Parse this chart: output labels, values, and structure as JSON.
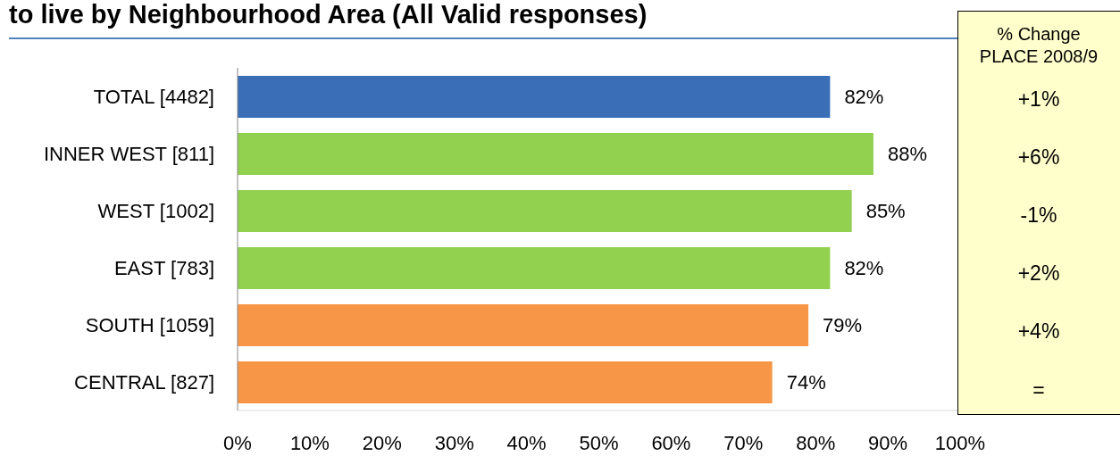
{
  "chart_data": {
    "type": "bar",
    "orientation": "horizontal",
    "title": "to live by Neighbourhood Area (All Valid responses)",
    "categories": [
      "TOTAL [4482]",
      "INNER WEST [811]",
      "WEST [1002]",
      "EAST [783]",
      "SOUTH [1059]",
      "CENTRAL [827]"
    ],
    "values": [
      82,
      88,
      85,
      82,
      79,
      74
    ],
    "colors": [
      "#3a6fb8",
      "#92d050",
      "#92d050",
      "#92d050",
      "#f79646",
      "#f79646"
    ],
    "value_labels": [
      "82%",
      "88%",
      "85%",
      "82%",
      "79%",
      "74%"
    ],
    "xlim": [
      0,
      100
    ],
    "xticks": [
      {
        "value": 0,
        "label": "0%"
      },
      {
        "value": 10,
        "label": "10%"
      },
      {
        "value": 20,
        "label": "20%"
      },
      {
        "value": 30,
        "label": "30%"
      },
      {
        "value": 40,
        "label": "40%"
      },
      {
        "value": 50,
        "label": "50%"
      },
      {
        "value": 60,
        "label": "60%"
      },
      {
        "value": 70,
        "label": "70%"
      },
      {
        "value": 80,
        "label": "80%"
      },
      {
        "value": 90,
        "label": "90%"
      },
      {
        "value": 100,
        "label": "100%"
      }
    ],
    "annotations": [
      "% Change PLACE 2008/9",
      "+1%",
      "+6%",
      "-1%",
      "+2%",
      "+4%",
      "="
    ]
  }
}
